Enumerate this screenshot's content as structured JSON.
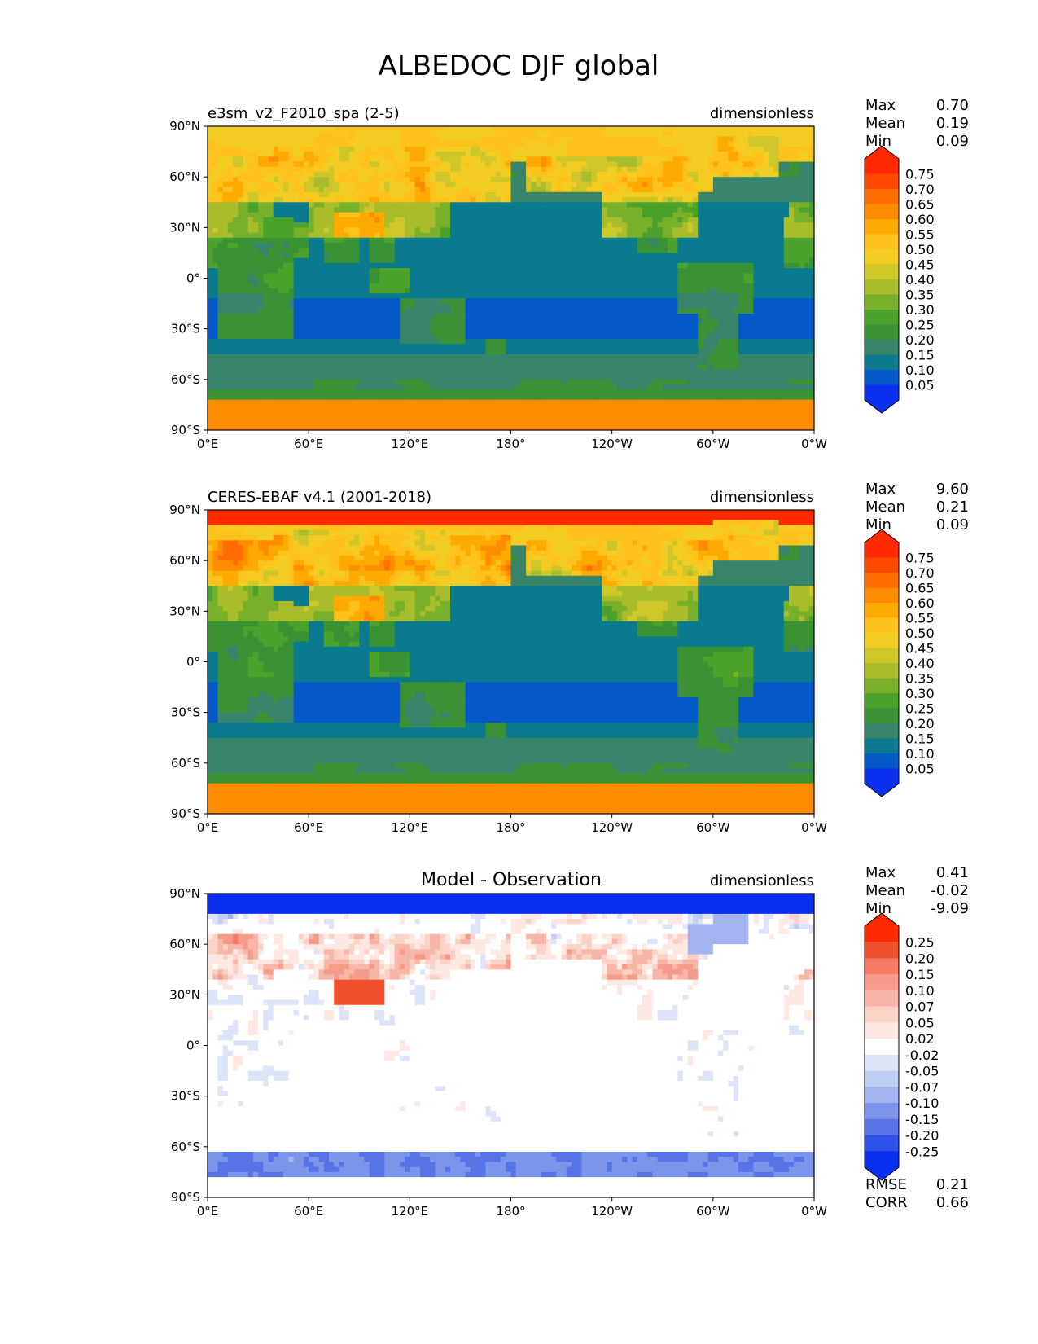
{
  "figure": {
    "title": "ALBEDOC DJF global"
  },
  "chart_data": [
    {
      "type": "heatmap",
      "title_left": "e3sm_v2_F2010_spa (2-5)",
      "title_center": "",
      "units": "dimensionless",
      "xticks": [
        "0°E",
        "60°E",
        "120°E",
        "180°",
        "120°W",
        "60°W",
        "0°W"
      ],
      "yticks": [
        "90°N",
        "60°N",
        "30°N",
        "0°",
        "30°S",
        "60°S",
        "90°S"
      ],
      "xlim": [
        0,
        360
      ],
      "ylim": [
        -90,
        90
      ],
      "stats": [
        {
          "label": "Max",
          "value": "0.70"
        },
        {
          "label": "Mean",
          "value": "0.19"
        },
        {
          "label": "Min",
          "value": "0.09"
        }
      ],
      "colorbar": {
        "levels": [
          "0.75",
          "0.70",
          "0.65",
          "0.60",
          "0.55",
          "0.50",
          "0.45",
          "0.40",
          "0.35",
          "0.30",
          "0.25",
          "0.20",
          "0.15",
          "0.10",
          "0.05"
        ],
        "colors": [
          "#ff2a00",
          "#ff4a00",
          "#ff6c00",
          "#ff8c00",
          "#ffaa00",
          "#ffc21c",
          "#f2cc20",
          "#cfc62a",
          "#a9bd2a",
          "#78b02a",
          "#4aa22a",
          "#3a9234",
          "#36846a",
          "#0a7a8e",
          "#0558c8",
          "#0a30f0"
        ]
      },
      "bottom_stats": []
    },
    {
      "type": "heatmap",
      "title_left": "CERES-EBAF v4.1 (2001-2018)",
      "title_center": "",
      "units": "dimensionless",
      "xticks": [
        "0°E",
        "60°E",
        "120°E",
        "180°",
        "120°W",
        "60°W",
        "0°W"
      ],
      "yticks": [
        "90°N",
        "60°N",
        "30°N",
        "0°",
        "30°S",
        "60°S",
        "90°S"
      ],
      "xlim": [
        0,
        360
      ],
      "ylim": [
        -90,
        90
      ],
      "stats": [
        {
          "label": "Max",
          "value": "9.60"
        },
        {
          "label": "Mean",
          "value": "0.21"
        },
        {
          "label": "Min",
          "value": "0.09"
        }
      ],
      "colorbar": {
        "levels": [
          "0.75",
          "0.70",
          "0.65",
          "0.60",
          "0.55",
          "0.50",
          "0.45",
          "0.40",
          "0.35",
          "0.30",
          "0.25",
          "0.20",
          "0.15",
          "0.10",
          "0.05"
        ],
        "colors": [
          "#ff2a00",
          "#ff4a00",
          "#ff6c00",
          "#ff8c00",
          "#ffaa00",
          "#ffc21c",
          "#f2cc20",
          "#cfc62a",
          "#a9bd2a",
          "#78b02a",
          "#4aa22a",
          "#3a9234",
          "#36846a",
          "#0a7a8e",
          "#0558c8",
          "#0a30f0"
        ]
      },
      "bottom_stats": []
    },
    {
      "type": "heatmap",
      "title_left": "",
      "title_center": "Model - Observation",
      "units": "dimensionless",
      "xticks": [
        "0°E",
        "60°E",
        "120°E",
        "180°",
        "120°W",
        "60°W",
        "0°W"
      ],
      "yticks": [
        "90°N",
        "60°N",
        "30°N",
        "0°",
        "30°S",
        "60°S",
        "90°S"
      ],
      "xlim": [
        0,
        360
      ],
      "ylim": [
        -90,
        90
      ],
      "stats": [
        {
          "label": "Max",
          "value": "0.41"
        },
        {
          "label": "Mean",
          "value": "-0.02"
        },
        {
          "label": "Min",
          "value": "-9.09"
        }
      ],
      "colorbar": {
        "levels": [
          "0.25",
          "0.20",
          "0.15",
          "0.10",
          "0.07",
          "0.05",
          "0.02",
          "-0.02",
          "-0.05",
          "-0.07",
          "-0.10",
          "-0.15",
          "-0.20",
          "-0.25"
        ],
        "colors": [
          "#ff2a00",
          "#f0502e",
          "#f47a64",
          "#f59b8a",
          "#f8b6a8",
          "#fad2c6",
          "#fde8e2",
          "#ffffff",
          "#dde4f8",
          "#c0cdf4",
          "#a3b4f0",
          "#7c94ea",
          "#5674e6",
          "#3050ea",
          "#0a2ef0"
        ]
      },
      "bottom_stats": [
        {
          "label": "RMSE",
          "value": "0.21"
        },
        {
          "label": "CORR",
          "value": "0.66"
        }
      ]
    }
  ]
}
